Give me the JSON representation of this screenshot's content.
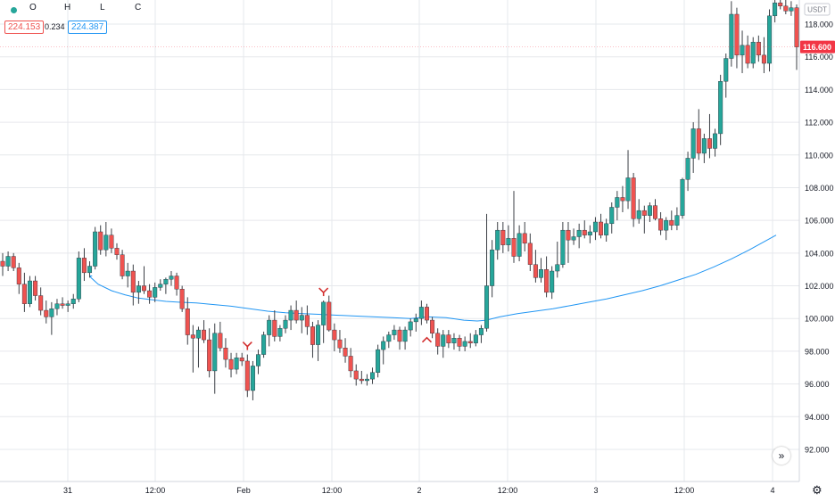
{
  "header": {
    "ohlc_labels": [
      "O",
      "H",
      "L",
      "C"
    ],
    "values": {
      "red_box": "224.153",
      "plain": "0.234",
      "blue_box": "224.387"
    },
    "currency": "USDT",
    "scroll_button_icon": "double-chevron-right-icon",
    "settings_icon": "gear-icon"
  },
  "colors": {
    "up": "#26a69a",
    "down": "#ef5350",
    "ma": "#2196f3",
    "marker": "#d32f2f",
    "grid": "#e6e8ec",
    "price_tag": "#f23645"
  },
  "chart_data": {
    "type": "candlestick",
    "y_range": [
      91,
      119.5
    ],
    "y_ticks": [
      "118.000",
      "116.000",
      "114.000",
      "112.000",
      "110.000",
      "108.000",
      "106.000",
      "104.000",
      "102.000",
      "100.000",
      "98.000",
      "96.000",
      "94.000",
      "92.000"
    ],
    "x_ticks": [
      "31",
      "12:00",
      "Feb",
      "12:00",
      "2",
      "12:00",
      "3",
      "12:00",
      "4"
    ],
    "current_price": "116.600",
    "ohlc": [
      [
        103.5,
        104.0,
        102.6,
        103.2
      ],
      [
        103.2,
        104.1,
        102.9,
        103.8
      ],
      [
        103.8,
        104.0,
        102.9,
        103.1
      ],
      [
        103.1,
        103.4,
        101.5,
        102.1
      ],
      [
        102.1,
        102.8,
        100.4,
        100.9
      ],
      [
        100.9,
        102.6,
        100.7,
        102.3
      ],
      [
        102.3,
        102.6,
        101.1,
        101.4
      ],
      [
        101.4,
        101.9,
        100.2,
        100.5
      ],
      [
        100.5,
        101.1,
        99.7,
        100.1
      ],
      [
        100.1,
        101.0,
        99.0,
        100.6
      ],
      [
        100.6,
        101.2,
        100.2,
        100.9
      ],
      [
        100.9,
        101.3,
        100.6,
        100.8
      ],
      [
        100.8,
        101.1,
        100.4,
        100.9
      ],
      [
        100.9,
        101.5,
        100.6,
        101.2
      ],
      [
        101.2,
        104.1,
        101.0,
        103.7
      ],
      [
        103.7,
        104.3,
        102.3,
        102.8
      ],
      [
        102.8,
        103.5,
        102.5,
        103.2
      ],
      [
        103.2,
        105.6,
        103.0,
        105.3
      ],
      [
        105.3,
        105.7,
        103.9,
        104.2
      ],
      [
        104.2,
        105.9,
        103.8,
        105.1
      ],
      [
        105.1,
        105.5,
        104.0,
        104.3
      ],
      [
        104.3,
        104.6,
        103.6,
        103.9
      ],
      [
        103.9,
        104.2,
        102.4,
        102.6
      ],
      [
        102.6,
        103.4,
        101.9,
        102.9
      ],
      [
        102.9,
        103.3,
        100.8,
        101.6
      ],
      [
        101.6,
        102.3,
        100.9,
        102.0
      ],
      [
        102.0,
        103.2,
        101.5,
        101.7
      ],
      [
        101.7,
        102.1,
        100.9,
        101.3
      ],
      [
        101.3,
        102.2,
        101.0,
        101.9
      ],
      [
        101.9,
        102.4,
        101.7,
        102.1
      ],
      [
        102.1,
        102.5,
        101.5,
        102.4
      ],
      [
        102.4,
        102.9,
        102.0,
        102.6
      ],
      [
        102.6,
        102.8,
        101.4,
        101.8
      ],
      [
        101.8,
        102.0,
        100.4,
        100.6
      ],
      [
        100.6,
        101.3,
        98.4,
        99.0
      ],
      [
        99.0,
        99.6,
        96.7,
        98.8
      ],
      [
        98.8,
        99.5,
        97.0,
        99.3
      ],
      [
        99.3,
        99.9,
        98.5,
        98.7
      ],
      [
        98.7,
        99.4,
        96.4,
        96.8
      ],
      [
        96.8,
        99.7,
        95.4,
        99.1
      ],
      [
        99.1,
        99.8,
        98.0,
        98.2
      ],
      [
        98.2,
        98.8,
        97.0,
        97.5
      ],
      [
        97.5,
        97.9,
        96.4,
        96.9
      ],
      [
        96.9,
        97.9,
        96.6,
        97.6
      ],
      [
        97.6,
        97.9,
        97.1,
        97.4
      ],
      [
        97.4,
        97.8,
        95.2,
        95.6
      ],
      [
        95.6,
        97.4,
        95.0,
        97.1
      ],
      [
        97.1,
        98.1,
        96.6,
        97.8
      ],
      [
        97.8,
        99.2,
        97.6,
        99.0
      ],
      [
        99.0,
        100.2,
        98.3,
        99.9
      ],
      [
        99.9,
        100.5,
        98.6,
        98.9
      ],
      [
        98.9,
        99.6,
        98.6,
        99.4
      ],
      [
        99.4,
        100.2,
        99.1,
        99.9
      ],
      [
        99.9,
        100.8,
        99.3,
        100.5
      ],
      [
        100.5,
        101.1,
        99.7,
        99.9
      ],
      [
        99.9,
        100.7,
        99.1,
        100.2
      ],
      [
        100.2,
        100.8,
        99.0,
        99.5
      ],
      [
        99.5,
        99.8,
        97.6,
        98.4
      ],
      [
        98.4,
        99.9,
        97.4,
        99.6
      ],
      [
        99.6,
        101.1,
        98.5,
        101.0
      ],
      [
        101.0,
        101.4,
        99.2,
        99.3
      ],
      [
        99.3,
        99.7,
        98.0,
        98.7
      ],
      [
        98.7,
        99.3,
        97.9,
        98.2
      ],
      [
        98.2,
        98.8,
        97.3,
        97.7
      ],
      [
        97.7,
        98.2,
        96.4,
        96.8
      ],
      [
        96.8,
        97.2,
        95.9,
        96.3
      ],
      [
        96.3,
        96.8,
        96.0,
        96.2
      ],
      [
        96.2,
        96.6,
        95.9,
        96.3
      ],
      [
        96.3,
        97.0,
        96.0,
        96.7
      ],
      [
        96.7,
        98.4,
        96.4,
        98.1
      ],
      [
        98.1,
        98.9,
        97.2,
        98.6
      ],
      [
        98.6,
        99.2,
        98.2,
        99.0
      ],
      [
        99.0,
        99.6,
        98.7,
        99.3
      ],
      [
        99.3,
        99.5,
        98.1,
        98.6
      ],
      [
        98.6,
        99.5,
        98.1,
        99.3
      ],
      [
        99.3,
        100.0,
        98.9,
        99.8
      ],
      [
        99.8,
        100.3,
        99.2,
        100.0
      ],
      [
        100.0,
        101.1,
        99.6,
        100.7
      ],
      [
        100.7,
        100.9,
        99.7,
        99.9
      ],
      [
        99.9,
        100.1,
        98.8,
        99.1
      ],
      [
        99.1,
        99.4,
        97.8,
        98.3
      ],
      [
        98.3,
        99.3,
        97.6,
        99.0
      ],
      [
        99.0,
        99.3,
        98.2,
        98.5
      ],
      [
        98.5,
        99.1,
        98.1,
        98.8
      ],
      [
        98.8,
        99.0,
        98.0,
        98.3
      ],
      [
        98.3,
        98.9,
        98.0,
        98.6
      ],
      [
        98.6,
        99.1,
        98.2,
        98.5
      ],
      [
        98.5,
        99.3,
        98.3,
        99.0
      ],
      [
        99.0,
        99.6,
        98.5,
        99.4
      ],
      [
        99.4,
        106.4,
        99.2,
        102.0
      ],
      [
        102.0,
        104.8,
        101.3,
        104.2
      ],
      [
        104.2,
        105.9,
        103.6,
        105.4
      ],
      [
        105.4,
        105.9,
        104.0,
        104.5
      ],
      [
        104.5,
        105.7,
        104.1,
        104.9
      ],
      [
        104.9,
        107.8,
        103.4,
        103.8
      ],
      [
        103.8,
        105.7,
        103.5,
        105.2
      ],
      [
        105.2,
        105.9,
        104.1,
        104.6
      ],
      [
        104.6,
        105.2,
        102.9,
        103.3
      ],
      [
        103.3,
        104.2,
        102.2,
        102.5
      ],
      [
        102.5,
        103.7,
        102.2,
        103.0
      ],
      [
        103.0,
        103.8,
        101.3,
        101.6
      ],
      [
        101.6,
        103.2,
        101.2,
        102.9
      ],
      [
        102.9,
        104.7,
        102.5,
        103.3
      ],
      [
        103.3,
        105.9,
        103.1,
        105.4
      ],
      [
        105.4,
        105.9,
        103.4,
        104.8
      ],
      [
        104.8,
        105.5,
        104.5,
        105.0
      ],
      [
        105.0,
        105.8,
        104.3,
        105.4
      ],
      [
        105.4,
        106.0,
        104.9,
        105.1
      ],
      [
        105.1,
        105.7,
        104.6,
        105.3
      ],
      [
        105.3,
        106.2,
        104.8,
        105.9
      ],
      [
        105.9,
        106.4,
        104.9,
        105.1
      ],
      [
        105.1,
        106.1,
        104.7,
        105.8
      ],
      [
        105.8,
        107.1,
        105.2,
        106.8
      ],
      [
        106.8,
        107.8,
        106.0,
        107.4
      ],
      [
        107.4,
        108.1,
        106.5,
        107.2
      ],
      [
        107.2,
        110.3,
        106.7,
        108.6
      ],
      [
        108.6,
        108.9,
        105.6,
        106.1
      ],
      [
        106.1,
        107.3,
        105.8,
        106.6
      ],
      [
        106.6,
        106.9,
        105.2,
        106.3
      ],
      [
        106.3,
        107.1,
        105.9,
        106.9
      ],
      [
        106.9,
        107.3,
        106.0,
        106.1
      ],
      [
        106.1,
        106.5,
        105.1,
        105.4
      ],
      [
        105.4,
        106.2,
        104.8,
        106.0
      ],
      [
        106.0,
        106.6,
        105.4,
        105.7
      ],
      [
        105.7,
        106.8,
        105.4,
        106.3
      ],
      [
        106.3,
        108.6,
        106.1,
        108.5
      ],
      [
        108.5,
        110.2,
        107.8,
        109.8
      ],
      [
        109.8,
        112.0,
        108.9,
        111.6
      ],
      [
        111.6,
        112.8,
        109.7,
        110.1
      ],
      [
        110.1,
        111.3,
        109.5,
        111.0
      ],
      [
        111.0,
        112.5,
        109.8,
        110.4
      ],
      [
        110.4,
        111.6,
        109.9,
        111.3
      ],
      [
        111.3,
        114.9,
        110.6,
        114.5
      ],
      [
        114.5,
        116.2,
        113.5,
        115.9
      ],
      [
        115.9,
        119.4,
        115.4,
        118.6
      ],
      [
        118.6,
        119.0,
        115.3,
        116.1
      ],
      [
        116.1,
        117.6,
        115.0,
        116.7
      ],
      [
        116.7,
        117.3,
        115.3,
        115.6
      ],
      [
        115.6,
        117.2,
        115.3,
        116.9
      ],
      [
        116.9,
        117.3,
        115.7,
        116.1
      ],
      [
        116.1,
        117.2,
        115.0,
        115.6
      ],
      [
        115.6,
        118.9,
        115.1,
        118.5
      ],
      [
        118.5,
        119.6,
        118.1,
        119.3
      ],
      [
        119.3,
        119.9,
        118.9,
        119.1
      ],
      [
        119.1,
        119.5,
        118.6,
        118.8
      ],
      [
        118.8,
        119.4,
        118.5,
        119.0
      ],
      [
        119.0,
        119.2,
        115.2,
        116.6
      ]
    ],
    "ma_line": [
      [
        103.3,
        102.6
      ],
      [
        101,
        102.6
      ],
      [
        102,
        102.5
      ],
      [
        110,
        102.1
      ],
      [
        125,
        101.7
      ],
      [
        140,
        101.45
      ],
      [
        155,
        101.25
      ],
      [
        170,
        101.15
      ],
      [
        186,
        101.05
      ],
      [
        200,
        101.0
      ],
      [
        220,
        100.95
      ],
      [
        240,
        100.85
      ],
      [
        260,
        100.75
      ],
      [
        280,
        100.6
      ],
      [
        300,
        100.45
      ],
      [
        320,
        100.35
      ],
      [
        340,
        100.3
      ],
      [
        360,
        100.25
      ],
      [
        380,
        100.2
      ],
      [
        400,
        100.15
      ],
      [
        420,
        100.1
      ],
      [
        440,
        100.05
      ],
      [
        460,
        100.0
      ],
      [
        480,
        100.1
      ],
      [
        500,
        100.05
      ],
      [
        520,
        99.9
      ],
      [
        535,
        99.85
      ],
      [
        545,
        99.9
      ],
      [
        560,
        100.1
      ],
      [
        580,
        100.3
      ],
      [
        600,
        100.45
      ],
      [
        620,
        100.6
      ],
      [
        640,
        100.8
      ],
      [
        660,
        101.0
      ],
      [
        680,
        101.2
      ],
      [
        700,
        101.45
      ],
      [
        720,
        101.7
      ],
      [
        740,
        102.0
      ],
      [
        760,
        102.35
      ],
      [
        780,
        102.7
      ],
      [
        800,
        103.15
      ],
      [
        820,
        103.65
      ],
      [
        840,
        104.2
      ],
      [
        860,
        104.8
      ],
      [
        870,
        105.1
      ]
    ],
    "markers": [
      {
        "type": "sell",
        "candle": 45
      },
      {
        "type": "sell",
        "candle": 59
      },
      {
        "type": "buy",
        "candle": 78
      }
    ]
  }
}
